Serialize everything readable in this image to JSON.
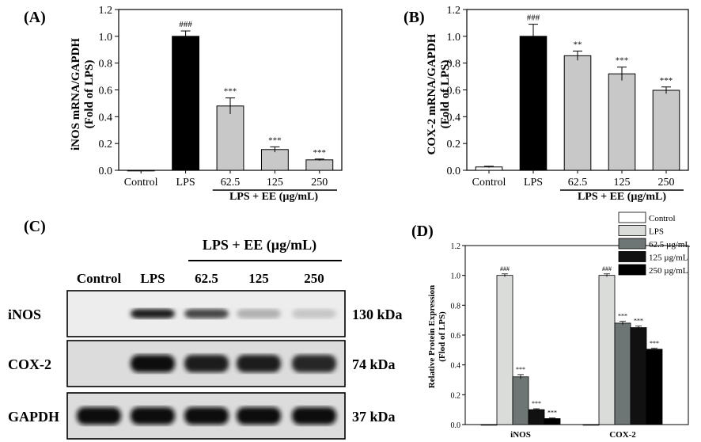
{
  "panels": {
    "a": "(A)",
    "b": "(B)",
    "c": "(C)",
    "d": "(D)"
  },
  "chart_data": [
    {
      "id": "A",
      "type": "bar",
      "ylabel_line1": "iNOS mRNA/GAPDH",
      "ylabel_line2": "(Fold of LPS)",
      "categories": [
        "Control",
        "LPS",
        "62.5",
        "125",
        "250"
      ],
      "group_label": "LPS + EE (µg/mL)",
      "values": [
        0.0,
        1.0,
        0.48,
        0.155,
        0.078
      ],
      "errors": [
        0.0,
        0.04,
        0.06,
        0.02,
        0.006
      ],
      "significance": [
        "",
        "###",
        "***",
        "***",
        "***"
      ],
      "ylim": [
        0,
        1.2
      ],
      "yticks": [
        "0.0",
        "0.2",
        "0.4",
        "0.6",
        "0.8",
        "1.0",
        "1.2"
      ],
      "colors": [
        "#ffffff",
        "#000000",
        "#c8c8c8",
        "#c8c8c8",
        "#c8c8c8"
      ]
    },
    {
      "id": "B",
      "type": "bar",
      "ylabel_line1": "COX-2 mRNA/GAPDH",
      "ylabel_line2": "(Fold of LPS)",
      "categories": [
        "Control",
        "LPS",
        "62.5",
        "125",
        "250"
      ],
      "group_label": "LPS + EE (µg/mL)",
      "values": [
        0.025,
        1.0,
        0.855,
        0.72,
        0.597
      ],
      "errors": [
        0.005,
        0.09,
        0.035,
        0.05,
        0.025
      ],
      "significance": [
        "",
        "###",
        "**",
        "***",
        "***"
      ],
      "ylim": [
        0,
        1.2
      ],
      "yticks": [
        "0.0",
        "0.2",
        "0.4",
        "0.6",
        "0.8",
        "1.0",
        "1.2"
      ],
      "colors": [
        "#ffffff",
        "#000000",
        "#c8c8c8",
        "#c8c8c8",
        "#c8c8c8"
      ]
    },
    {
      "id": "D",
      "type": "bar",
      "ylabel_line1": "Relative Protein Expression",
      "ylabel_line2": "(Flod of LPS)",
      "categories": [
        "iNOS",
        "COX-2"
      ],
      "series": [
        {
          "name": "Control",
          "values": [
            0.0,
            0.0
          ],
          "errors": [
            0,
            0
          ],
          "significance": [
            "",
            ""
          ],
          "color": "#ffffff"
        },
        {
          "name": "LPS",
          "values": [
            1.0,
            1.0
          ],
          "errors": [
            0.01,
            0.01
          ],
          "significance": [
            "###",
            "###"
          ],
          "color": "#d9dcd9"
        },
        {
          "name": "62.5  µg/mL",
          "values": [
            0.32,
            0.68
          ],
          "errors": [
            0.015,
            0.012
          ],
          "significance": [
            "***",
            "***"
          ],
          "color": "#6e7575"
        },
        {
          "name": "125  µg/mL",
          "values": [
            0.1,
            0.65
          ],
          "errors": [
            0.006,
            0.01
          ],
          "significance": [
            "***",
            "***"
          ],
          "color": "#111111"
        },
        {
          "name": "250  µg/mL",
          "values": [
            0.04,
            0.505
          ],
          "errors": [
            0.004,
            0.006
          ],
          "significance": [
            "***",
            "***"
          ],
          "color": "#000000"
        }
      ],
      "ylim": [
        0,
        1.2
      ],
      "yticks": [
        "0.0",
        "0.2",
        "0.4",
        "0.6",
        "0.8",
        "1.0",
        "1.2"
      ],
      "legend_position": "top-right"
    }
  ],
  "blot": {
    "header_group": "LPS + EE (µg/mL)",
    "lanes": [
      "Control",
      "LPS",
      "62.5",
      "125",
      "250"
    ],
    "rows": [
      {
        "label": "iNOS",
        "size": "130 kDa",
        "intensity": [
          0.0,
          0.95,
          0.75,
          0.25,
          0.15
        ]
      },
      {
        "label": "COX-2",
        "size": "74 kDa",
        "intensity": [
          0.0,
          1.0,
          0.95,
          0.95,
          0.9
        ]
      },
      {
        "label": "GAPDH",
        "size": "37 kDa",
        "intensity": [
          1.0,
          1.0,
          1.0,
          1.0,
          1.0
        ]
      }
    ]
  }
}
